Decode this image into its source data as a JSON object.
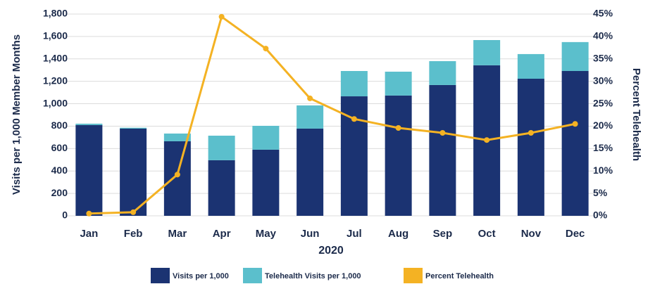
{
  "chart_data": {
    "type": "bar",
    "x_label": "2020",
    "y_label": "Visits per 1,000 Member Months",
    "y2_label": "Percent Telehealth",
    "categories": [
      "Jan",
      "Feb",
      "Mar",
      "Apr",
      "May",
      "Jun",
      "Jul",
      "Aug",
      "Sep",
      "Oct",
      "Nov",
      "Dec"
    ],
    "stacked": true,
    "grid": true,
    "legend": "bottom",
    "series": [
      {
        "name": "Visits per 1,000",
        "color": "#1b3372",
        "values": [
          810,
          778,
          665,
          496,
          590,
          778,
          1066,
          1073,
          1167,
          1343,
          1223,
          1292
        ]
      },
      {
        "name": "Telehealth Visits per 1,000",
        "color": "#5bbfcc",
        "values": [
          12,
          8,
          69,
          219,
          213,
          207,
          226,
          213,
          213,
          225,
          220,
          258
        ]
      },
      {
        "name": "Percent Telehealth",
        "color": "#f4b223",
        "type": "line",
        "axis": "y2",
        "values": [
          0.5,
          0.8,
          9.2,
          44.4,
          37.3,
          26.2,
          21.6,
          19.6,
          18.5,
          16.9,
          18.5,
          20.5
        ]
      }
    ],
    "ylim": [
      0,
      1800
    ],
    "yticks": [
      0,
      {
        "value": 200,
        "label": "200"
      },
      400,
      600,
      800,
      {
        "value": 1000,
        "label": "1,000"
      },
      {
        "value": 1200,
        "label": "1,200"
      },
      {
        "value": 1400,
        "label": "1,400"
      },
      {
        "value": 1600,
        "label": "1,600"
      },
      {
        "value": 1800,
        "label": "1,800"
      }
    ],
    "y2lim": [
      0,
      45
    ],
    "y2ticks": [
      {
        "value": 0,
        "label": "0%"
      },
      {
        "value": 5,
        "label": "5%"
      },
      {
        "value": 10,
        "label": "10%"
      },
      {
        "value": 15,
        "label": "15%"
      },
      {
        "value": 20,
        "label": "20%"
      },
      {
        "value": 25,
        "label": "25%"
      },
      {
        "value": 30,
        "label": "30%"
      },
      {
        "value": 35,
        "label": "35%"
      },
      {
        "value": 40,
        "label": "40%"
      },
      {
        "value": 45,
        "label": "45%"
      }
    ]
  }
}
